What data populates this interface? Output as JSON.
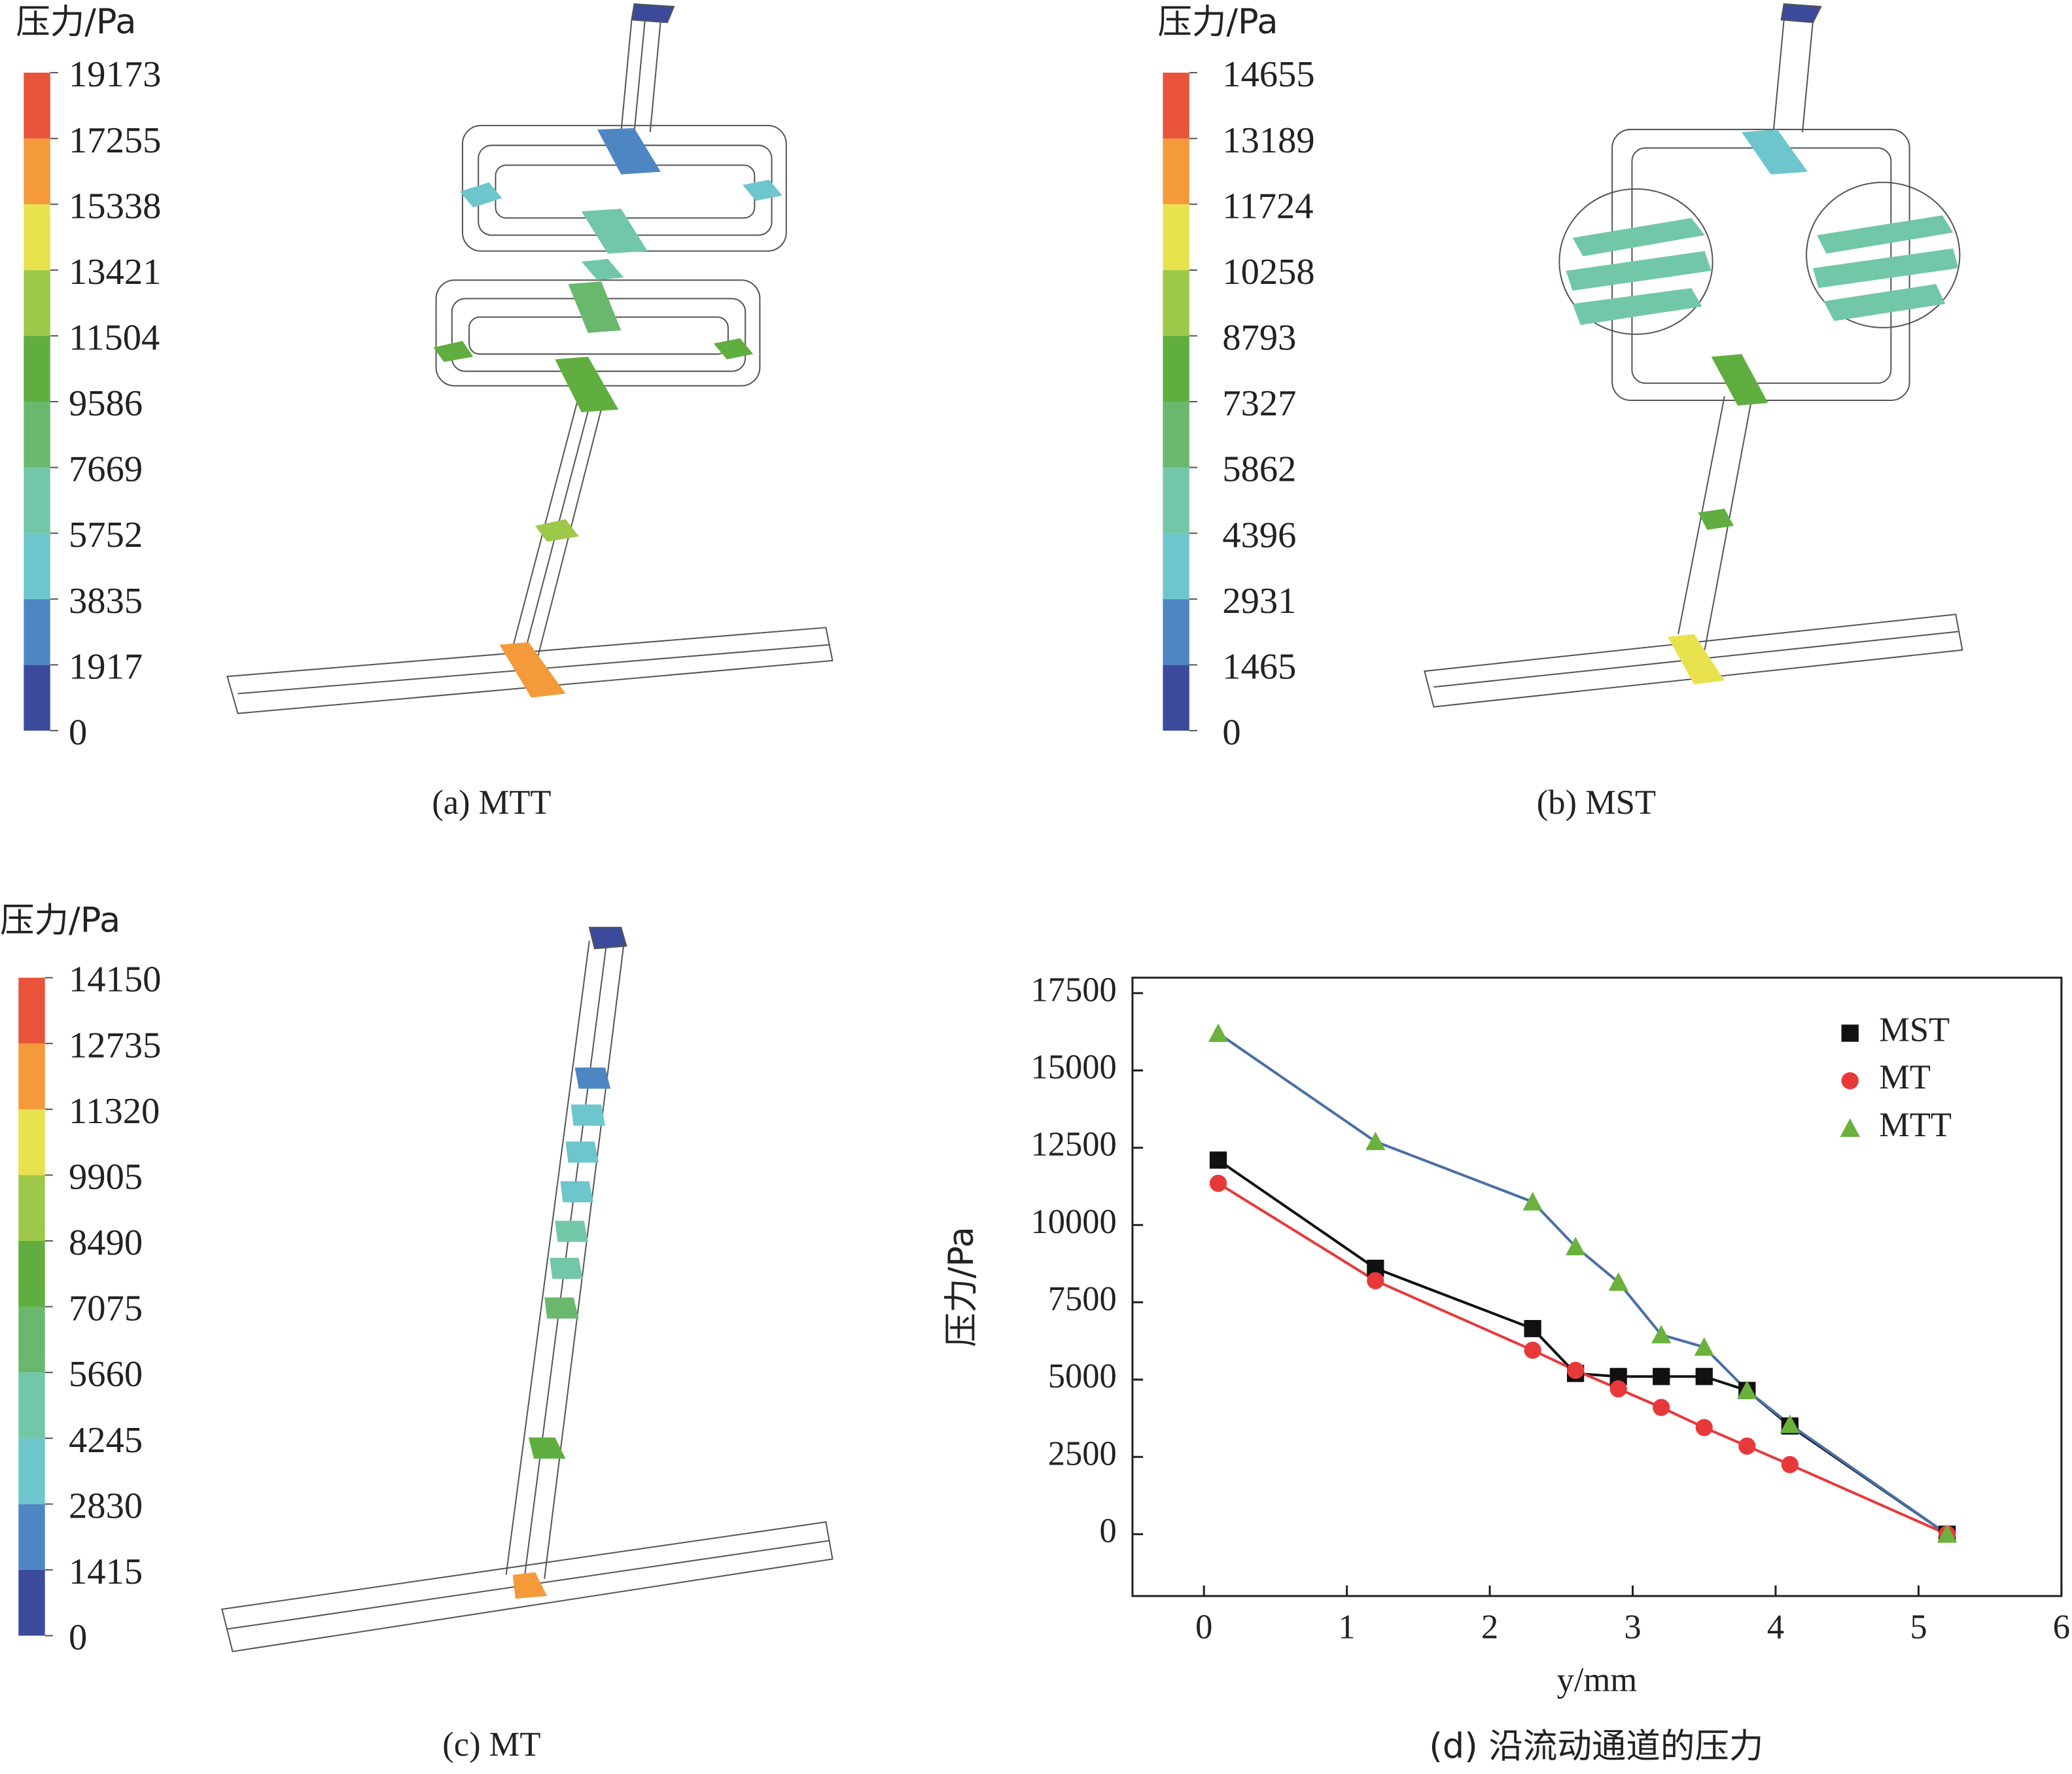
{
  "chart_data": [
    {
      "type": "colorbar",
      "title": "压力/Pa",
      "caption": "(a) MTT",
      "yticks": [
        0,
        1917,
        3835,
        5752,
        7669,
        9586,
        11504,
        13421,
        15338,
        17255,
        19173
      ],
      "colors": [
        "#3b4a9a",
        "#4e86c4",
        "#6dc6cc",
        "#72c7a8",
        "#69b86e",
        "#5fae3f",
        "#9dc84a",
        "#e8e24e",
        "#f49a3a",
        "#e8533a"
      ]
    },
    {
      "type": "colorbar",
      "title": "压力/Pa",
      "caption": "(b) MST",
      "yticks": [
        0,
        1465,
        2931,
        4396,
        5862,
        7327,
        8793,
        10258,
        11724,
        13189,
        14655
      ],
      "colors": [
        "#3b4a9a",
        "#4e86c4",
        "#6dc6cc",
        "#72c7a8",
        "#69b86e",
        "#5fae3f",
        "#9dc84a",
        "#e8e24e",
        "#f49a3a",
        "#e8533a"
      ]
    },
    {
      "type": "colorbar",
      "title": "压力/Pa",
      "caption": "(c) MT",
      "yticks": [
        0,
        1415,
        2830,
        4245,
        5660,
        7075,
        8490,
        9905,
        11320,
        12735,
        14150
      ],
      "colors": [
        "#3b4a9a",
        "#4e86c4",
        "#6dc6cc",
        "#72c7a8",
        "#69b86e",
        "#5fae3f",
        "#9dc84a",
        "#e8e24e",
        "#f49a3a",
        "#e8533a"
      ]
    },
    {
      "type": "line",
      "caption": "(d) 沿流动通道的压力",
      "xlabel": "y/mm",
      "ylabel": "压力/Pa",
      "x": [
        0.1,
        1.2,
        2.3,
        2.6,
        2.9,
        3.2,
        3.5,
        3.8,
        4.1,
        5.2
      ],
      "series": [
        {
          "name": "MST",
          "color": "#111111",
          "line_color": "#111111",
          "marker": "square",
          "values": [
            12100,
            8600,
            6650,
            5200,
            5100,
            5100,
            5100,
            4650,
            3500,
            0
          ]
        },
        {
          "name": "MT",
          "color": "#e8393a",
          "line_color": "#e8393a",
          "marker": "circle",
          "values": [
            11350,
            8200,
            5950,
            5300,
            4700,
            4100,
            3450,
            2850,
            2250,
            0
          ]
        },
        {
          "name": "MTT",
          "color": "#6ab23c",
          "line_color": "#4a6fa5",
          "marker": "triangle",
          "values": [
            16200,
            12700,
            10750,
            9300,
            8150,
            6450,
            6050,
            4650,
            3550,
            0
          ]
        }
      ],
      "xlim": [
        -0.5,
        6
      ],
      "ylim": [
        -2000,
        18000
      ],
      "xticks": [
        0,
        1,
        2,
        3,
        4,
        5,
        6
      ],
      "yticks": [
        0,
        2500,
        5000,
        7500,
        10000,
        12500,
        15000,
        17500
      ],
      "legend": "upper right"
    }
  ]
}
